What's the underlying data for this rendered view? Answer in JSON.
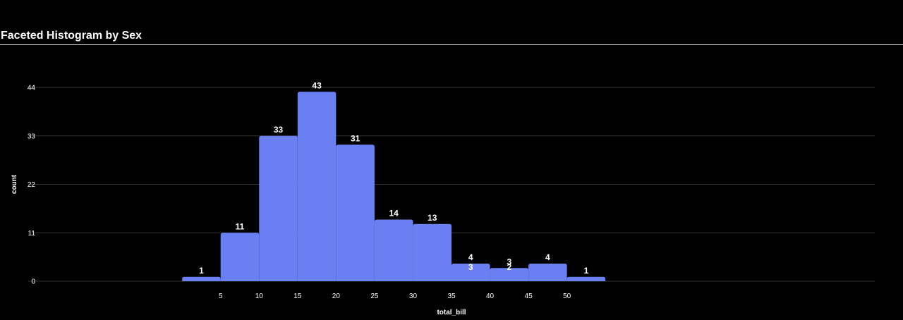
{
  "title": "Faceted Histogram by Sex",
  "colors": {
    "background": "#000000",
    "bar": "#6a7ff2",
    "grid": "#333333",
    "text": "#ffffff"
  },
  "chart_data": {
    "type": "bar",
    "title": "Faceted Histogram by Sex",
    "xlabel": "total_bill",
    "ylabel": "count",
    "ylim": [
      0,
      44
    ],
    "xlim": [
      -20,
      90
    ],
    "yticks": [
      0,
      11,
      22,
      33,
      44
    ],
    "xticks": [
      5,
      10,
      15,
      20,
      25,
      30,
      35,
      40,
      45,
      50
    ],
    "grid": true,
    "bins": [
      {
        "start": 0,
        "end": 5,
        "count": 1
      },
      {
        "start": 5,
        "end": 10,
        "count": 11
      },
      {
        "start": 10,
        "end": 15,
        "count": 33
      },
      {
        "start": 15,
        "end": 20,
        "count": 43
      },
      {
        "start": 20,
        "end": 25,
        "count": 31
      },
      {
        "start": 25,
        "end": 30,
        "count": 14
      },
      {
        "start": 30,
        "end": 35,
        "count": 13
      },
      {
        "start": 35,
        "end": 40,
        "count": 4
      },
      {
        "start": 40,
        "end": 45,
        "count": 3
      },
      {
        "start": 45,
        "end": 50,
        "count": 4
      },
      {
        "start": 50,
        "end": 55,
        "count": 1
      }
    ],
    "hidden_labels": [
      {
        "x": 37.5,
        "label": "3"
      },
      {
        "x": 42.5,
        "label": "2"
      }
    ]
  }
}
